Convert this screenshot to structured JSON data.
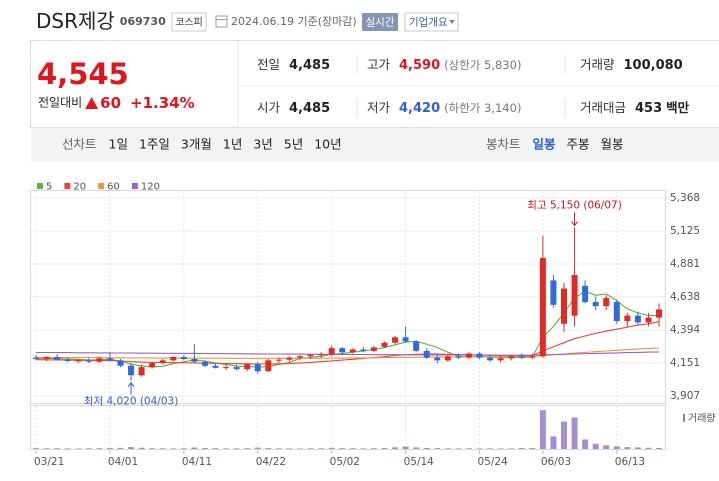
{
  "header": {
    "name": "DSR제강",
    "code": "069730",
    "market": "코스피",
    "date": "2024.06.19 기준(장마감)",
    "realtime": "실시간",
    "company": "기업개요"
  },
  "quote": {
    "price": "4,545",
    "change_label": "전일대비",
    "change": "60",
    "change_rate": "+1.34%"
  },
  "summary": {
    "rows": [
      [
        {
          "label": "전일",
          "value": "4,485"
        },
        {
          "label": "고가",
          "value": "4,590",
          "note": "(상한가 5,830)"
        },
        {
          "label": "거래량",
          "value": "100,080"
        }
      ],
      [
        {
          "label": "시가",
          "value": "4,485"
        },
        {
          "label": "저가",
          "value": "4,420",
          "note": "(하한가 3,140)"
        },
        {
          "label": "거래대금",
          "value": "453",
          "unit": "백만"
        }
      ]
    ]
  },
  "tabs": {
    "line_label": "선차트",
    "line_periods": [
      "1일",
      "1주일",
      "3개월",
      "1년",
      "3년",
      "5년",
      "10년"
    ],
    "candle_label": "봉차트",
    "candle_periods": [
      "일봉",
      "주봉",
      "월봉"
    ]
  },
  "chart_data": {
    "type": "candlestick",
    "up_color": "#e22926",
    "down_color": "#2f6bdd",
    "categories": [
      "03/21",
      null,
      null,
      null,
      null,
      null,
      null,
      "04/01",
      null,
      null,
      null,
      null,
      null,
      null,
      "04/11",
      null,
      null,
      null,
      null,
      null,
      null,
      "04/22",
      null,
      null,
      null,
      null,
      null,
      null,
      "05/02",
      null,
      null,
      null,
      null,
      null,
      null,
      "05/14",
      null,
      null,
      null,
      null,
      null,
      null,
      "05/24",
      null,
      null,
      null,
      null,
      null,
      "06/03",
      null,
      null,
      null,
      null,
      null,
      null,
      "06/13",
      null,
      null,
      null,
      null
    ],
    "open": [
      4190,
      4180,
      4195,
      4175,
      4165,
      4170,
      4160,
      4185,
      4170,
      4130,
      4060,
      4120,
      4150,
      4170,
      4195,
      4180,
      4160,
      4130,
      4115,
      4120,
      4105,
      4140,
      4090,
      4170,
      4175,
      4190,
      4200,
      4210,
      4215,
      4260,
      4230,
      4250,
      4240,
      4270,
      4300,
      4340,
      4310,
      4240,
      4190,
      4170,
      4200,
      4190,
      4220,
      4190,
      4170,
      4185,
      4200,
      4190,
      4200,
      4760,
      4440,
      4500,
      4720,
      4600,
      4570,
      4600,
      4460,
      4500,
      4450,
      4485
    ],
    "high": [
      4210,
      4200,
      4215,
      4190,
      4180,
      4185,
      4195,
      4230,
      4180,
      4150,
      4140,
      4160,
      4180,
      4200,
      4210,
      4290,
      4170,
      4150,
      4140,
      4140,
      4150,
      4160,
      4180,
      4190,
      4200,
      4210,
      4220,
      4230,
      4280,
      4270,
      4260,
      4270,
      4275,
      4310,
      4350,
      4420,
      4320,
      4260,
      4220,
      4210,
      4220,
      4230,
      4230,
      4210,
      4200,
      4210,
      4220,
      4220,
      5090,
      4800,
      4740,
      5150,
      4760,
      4640,
      4650,
      4620,
      4520,
      4530,
      4520,
      4590
    ],
    "low": [
      4170,
      4165,
      4170,
      4155,
      4150,
      4150,
      4150,
      4160,
      4120,
      4020,
      4050,
      4110,
      4140,
      4160,
      4170,
      4150,
      4120,
      4110,
      4100,
      4095,
      4090,
      4070,
      4085,
      4150,
      4160,
      4170,
      4180,
      4190,
      4200,
      4210,
      4220,
      4230,
      4230,
      4260,
      4290,
      4300,
      4230,
      4180,
      4150,
      4160,
      4180,
      4180,
      4180,
      4160,
      4155,
      4170,
      4180,
      4180,
      4190,
      4560,
      4380,
      4420,
      4590,
      4540,
      4540,
      4440,
      4420,
      4430,
      4420,
      4420
    ],
    "close": [
      4180,
      4195,
      4175,
      4165,
      4170,
      4160,
      4185,
      4170,
      4130,
      4060,
      4120,
      4150,
      4170,
      4195,
      4180,
      4160,
      4130,
      4115,
      4120,
      4105,
      4140,
      4090,
      4170,
      4175,
      4190,
      4200,
      4210,
      4215,
      4260,
      4230,
      4250,
      4240,
      4265,
      4300,
      4340,
      4310,
      4240,
      4190,
      4170,
      4200,
      4190,
      4220,
      4190,
      4170,
      4185,
      4200,
      4190,
      4200,
      4925,
      4580,
      4700,
      4800,
      4600,
      4570,
      4630,
      4460,
      4500,
      4450,
      4485,
      4545
    ],
    "series": [
      {
        "name": "5",
        "color": "#58b33f",
        "values": [
          4185,
          4185,
          4183,
          4180,
          4178,
          4172,
          4175,
          4178,
          4165,
          4140,
          4130,
          4120,
          4127,
          4145,
          4160,
          4172,
          4165,
          4150,
          4140,
          4127,
          4124,
          4120,
          4125,
          4140,
          4155,
          4185,
          4190,
          4200,
          4215,
          4220,
          4230,
          4240,
          4250,
          4265,
          4285,
          4305,
          4310,
          4290,
          4265,
          4230,
          4200,
          4195,
          4200,
          4195,
          4190,
          4190,
          4190,
          4195,
          4340,
          4420,
          4520,
          4630,
          4680,
          4650,
          4660,
          4610,
          4550,
          4520,
          4500,
          4500
        ]
      },
      {
        "name": "20",
        "color": "#e8463b",
        "values": [
          4175,
          4174,
          4173,
          4172,
          4171,
          4170,
          4169,
          4168,
          4165,
          4160,
          4157,
          4155,
          4154,
          4153,
          4152,
          4151,
          4150,
          4148,
          4146,
          4145,
          4144,
          4143,
          4143,
          4144,
          4146,
          4150,
          4155,
          4160,
          4166,
          4172,
          4178,
          4184,
          4190,
          4197,
          4205,
          4212,
          4215,
          4216,
          4216,
          4215,
          4214,
          4212,
          4210,
          4208,
          4206,
          4205,
          4204,
          4205,
          4240,
          4270,
          4300,
          4330,
          4350,
          4370,
          4385,
          4400,
          4415,
          4430,
          4440,
          4455
        ]
      },
      {
        "name": "60",
        "color": "#f0962e",
        "values": [
          4192,
          4192,
          4191,
          4191,
          4190,
          4190,
          4190,
          4189,
          4189,
          4188,
          4188,
          4188,
          4187,
          4187,
          4187,
          4186,
          4186,
          4186,
          4185,
          4185,
          4185,
          4185,
          4185,
          4185,
          4185,
          4186,
          4186,
          4186,
          4187,
          4187,
          4188,
          4188,
          4189,
          4190,
          4191,
          4192,
          4193,
          4193,
          4194,
          4194,
          4195,
          4195,
          4196,
          4196,
          4197,
          4197,
          4198,
          4198,
          4205,
          4211,
          4217,
          4224,
          4229,
          4234,
          4239,
          4244,
          4249,
          4253,
          4257,
          4261
        ]
      },
      {
        "name": "120",
        "color": "#9a5fcf",
        "values": [
          4228,
          4228,
          4227,
          4227,
          4226,
          4226,
          4225,
          4225,
          4224,
          4224,
          4223,
          4223,
          4222,
          4222,
          4221,
          4221,
          4220,
          4220,
          4219,
          4219,
          4218,
          4218,
          4217,
          4217,
          4216,
          4216,
          4215,
          4215,
          4214,
          4214,
          4213,
          4213,
          4212,
          4212,
          4212,
          4211,
          4211,
          4211,
          4210,
          4210,
          4210,
          4209,
          4209,
          4209,
          4208,
          4208,
          4208,
          4208,
          4211,
          4213,
          4215,
          4217,
          4219,
          4221,
          4223,
          4225,
          4227,
          4229,
          4231,
          4232
        ]
      }
    ],
    "ylim": [
      3907,
      5368
    ],
    "yticks": [
      {
        "value": 5368,
        "label": "5,368"
      },
      {
        "value": 5125,
        "label": "5,125"
      },
      {
        "value": 4881,
        "label": "4,881"
      },
      {
        "value": 4638,
        "label": "4,638"
      },
      {
        "value": 4394,
        "label": "4,394"
      },
      {
        "value": 4151,
        "label": "4,151"
      },
      {
        "value": 3907,
        "label": "3,907"
      }
    ],
    "grid": true,
    "annotations": [
      {
        "text": "최고 5,150 (06/07)",
        "value": 5150,
        "kind": "high"
      },
      {
        "text": "최저 4,020 (04/03)",
        "value": 4020,
        "kind": "low"
      }
    ],
    "volume": {
      "label": "거래량",
      "color": "#a48fd2",
      "ylim": [
        0,
        3900000
      ],
      "values": [
        82000,
        65000,
        71000,
        58000,
        49000,
        62000,
        77000,
        95000,
        110000,
        180000,
        120000,
        70000,
        64000,
        58000,
        66000,
        140000,
        90000,
        72000,
        55000,
        61000,
        68000,
        130000,
        85000,
        60000,
        57000,
        52000,
        60000,
        63000,
        110000,
        76000,
        69000,
        58000,
        72000,
        95000,
        160000,
        240000,
        150000,
        98000,
        80000,
        62000,
        58000,
        66000,
        54000,
        61000,
        50000,
        57000,
        92000,
        88000,
        3700000,
        1200000,
        2600000,
        3000000,
        900000,
        500000,
        350000,
        250000,
        180000,
        150000,
        120000,
        100080
      ]
    }
  }
}
